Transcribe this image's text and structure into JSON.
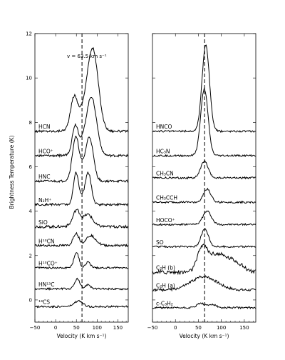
{
  "chart_data": [
    {
      "type": "line",
      "panel": "left",
      "xlabel": "Velocity (K km s⁻¹)",
      "ylabel": "Brightness Temperature (K)",
      "xlim": [
        -50,
        175
      ],
      "ylim": [
        -1,
        12
      ],
      "xticks": [
        -50,
        0,
        50,
        100,
        150
      ],
      "xtick_labels": [
        "−50",
        "0",
        "50",
        "100",
        "150"
      ],
      "yticks": [
        0,
        2,
        4,
        6,
        8,
        10,
        12
      ],
      "ytick_labels": [
        "0",
        "2",
        "4",
        "6",
        "8",
        "10",
        "12"
      ],
      "vline": 63.5,
      "annotation": "v = 63.5 km s⁻¹",
      "grid": false,
      "series": [
        {
          "name": "HCN",
          "offset": 7.6,
          "components": [
            {
              "v": 44,
              "amp": 1.2,
              "w": 8
            },
            {
              "v": 90,
              "amp": 3.3,
              "w": 13
            },
            {
              "v": 68,
              "amp": 0.8,
              "w": 20
            }
          ],
          "noise": 0.05
        },
        {
          "name": "HCO⁺",
          "offset": 6.5,
          "components": [
            {
              "v": 47,
              "amp": 1.1,
              "w": 7
            },
            {
              "v": 87,
              "amp": 2.4,
              "w": 12
            },
            {
              "v": 66,
              "amp": 0.5,
              "w": 18
            }
          ],
          "noise": 0.05
        },
        {
          "name": "HNC",
          "offset": 5.35,
          "components": [
            {
              "v": 48,
              "amp": 1.7,
              "w": 8
            },
            {
              "v": 82,
              "amp": 1.7,
              "w": 9
            },
            {
              "v": 65,
              "amp": 0.5,
              "w": 16
            }
          ],
          "noise": 0.05
        },
        {
          "name": "N₂H⁺",
          "offset": 4.3,
          "components": [
            {
              "v": 49,
              "amp": 1.3,
              "w": 6
            },
            {
              "v": 79,
              "amp": 1.3,
              "w": 7
            },
            {
              "v": 64,
              "amp": 0.3,
              "w": 12
            }
          ],
          "noise": 0.05
        },
        {
          "name": "SiO",
          "offset": 3.3,
          "components": [
            {
              "v": 50,
              "amp": 0.6,
              "w": 8
            },
            {
              "v": 79,
              "amp": 0.4,
              "w": 10
            },
            {
              "v": 64,
              "amp": 0.2,
              "w": 20
            }
          ],
          "noise": 0.06
        },
        {
          "name": "H¹³CN",
          "offset": 2.45,
          "components": [
            {
              "v": 49,
              "amp": 0.55,
              "w": 7
            },
            {
              "v": 85,
              "amp": 0.45,
              "w": 12
            }
          ],
          "noise": 0.05
        },
        {
          "name": "H¹³CO⁺",
          "offset": 1.45,
          "components": [
            {
              "v": 50,
              "amp": 0.7,
              "w": 6
            },
            {
              "v": 78,
              "amp": 0.25,
              "w": 6
            }
          ],
          "noise": 0.04
        },
        {
          "name": "HN¹³C",
          "offset": 0.5,
          "components": [
            {
              "v": 52,
              "amp": 0.45,
              "w": 6
            },
            {
              "v": 78,
              "amp": 0.2,
              "w": 6
            }
          ],
          "noise": 0.04
        },
        {
          "name": "¹³CS",
          "offset": -0.3,
          "components": [
            {
              "v": 55,
              "amp": 0.25,
              "w": 10
            }
          ],
          "noise": 0.04
        }
      ]
    },
    {
      "type": "line",
      "panel": "right",
      "xlabel": "Velocity (K km s⁻¹)",
      "xlim": [
        -50,
        175
      ],
      "ylim": [
        -1,
        12
      ],
      "xticks": [
        -50,
        0,
        50,
        100,
        150
      ],
      "xtick_labels": [
        "−50",
        "0",
        "50",
        "100",
        "150"
      ],
      "yticks": [
        0,
        2,
        4,
        6,
        8,
        10,
        12
      ],
      "vline": 63.5,
      "grid": false,
      "series": [
        {
          "name": "HNCO",
          "offset": 7.6,
          "components": [
            {
              "v": 66,
              "amp": 3.9,
              "w": 8
            }
          ],
          "noise": 0.04
        },
        {
          "name": "HC₃N",
          "offset": 6.5,
          "components": [
            {
              "v": 63,
              "amp": 3.0,
              "w": 8
            }
          ],
          "noise": 0.04
        },
        {
          "name": "CH₃CN",
          "offset": 5.5,
          "components": [
            {
              "v": 63,
              "amp": 0.75,
              "w": 8
            }
          ],
          "noise": 0.04
        },
        {
          "name": "CH₃CCH",
          "offset": 4.4,
          "components": [
            {
              "v": 69,
              "amp": 0.6,
              "w": 8
            }
          ],
          "noise": 0.04
        },
        {
          "name": "HOCO⁺",
          "offset": 3.4,
          "components": [
            {
              "v": 69,
              "amp": 0.6,
              "w": 9
            }
          ],
          "noise": 0.04
        },
        {
          "name": "SO",
          "offset": 2.4,
          "components": [
            {
              "v": 64,
              "amp": 0.8,
              "w": 8
            }
          ],
          "noise": 0.04
        },
        {
          "name": "C₂H (b)",
          "offset": 1.25,
          "components": [
            {
              "v": 58,
              "amp": 0.9,
              "w": 10
            },
            {
              "v": 88,
              "amp": 0.8,
              "w": 22
            },
            {
              "v": 130,
              "amp": 0.4,
              "w": 18
            }
          ],
          "noise": 0.09
        },
        {
          "name": "C₂H (a)",
          "offset": 0.45,
          "components": [
            {
              "v": 62,
              "amp": 0.6,
              "w": 28
            }
          ],
          "noise": 0.06
        },
        {
          "name": "c-C₃H₂",
          "offset": -0.35,
          "components": [
            {
              "v": 55,
              "amp": 0.2,
              "w": 8
            },
            {
              "v": 80,
              "amp": 0.15,
              "w": 8
            }
          ],
          "noise": 0.04
        }
      ]
    }
  ]
}
